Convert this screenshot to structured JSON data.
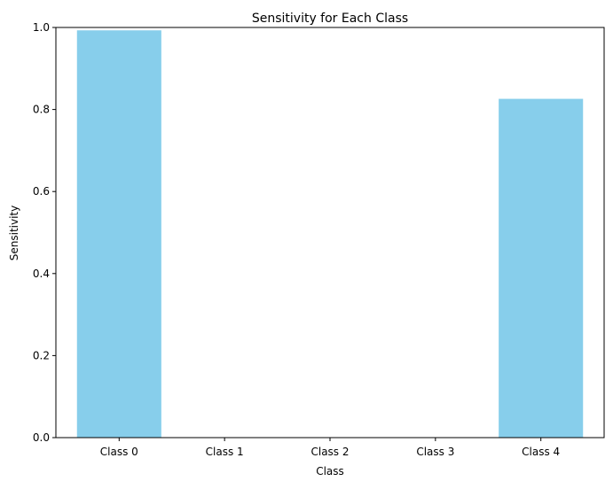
{
  "chart_data": {
    "type": "bar",
    "title": "Sensitivity for Each Class",
    "xlabel": "Class",
    "ylabel": "Sensitivity",
    "categories": [
      "Class 0",
      "Class 1",
      "Class 2",
      "Class 3",
      "Class 4"
    ],
    "values": [
      0.993,
      0.0,
      0.0,
      0.0,
      0.826
    ],
    "ylim": [
      0,
      1.0
    ],
    "yticks": [
      0.0,
      0.2,
      0.4,
      0.6,
      0.8,
      1.0
    ],
    "ytick_labels": [
      "0.0",
      "0.2",
      "0.4",
      "0.6",
      "0.8",
      "1.0"
    ],
    "bar_color": "#87ceeb",
    "grid": false,
    "legend": "none"
  }
}
